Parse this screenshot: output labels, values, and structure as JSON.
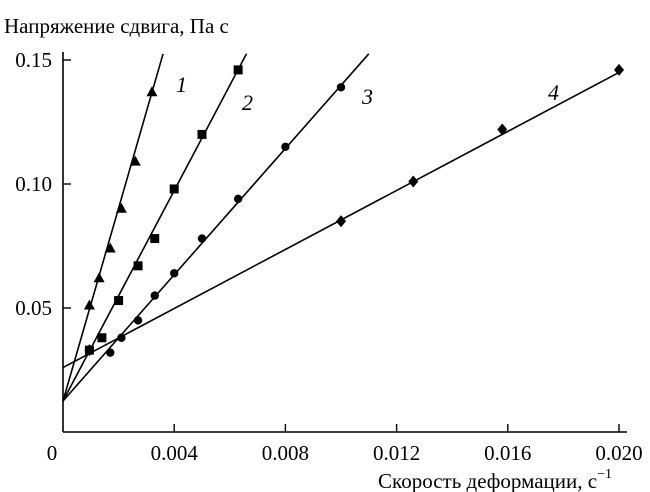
{
  "chart_data": {
    "type": "scatter",
    "ylabel": "Напряжение сдвига, Па с",
    "xlabel": "Скорость деформации, с",
    "xlabel_sup": "−1",
    "xlim": [
      0,
      0.02
    ],
    "ylim": [
      0,
      0.15
    ],
    "grid": false,
    "x_ticks": [
      {
        "v": 0,
        "label": "0"
      },
      {
        "v": 0.004,
        "label": "0.004"
      },
      {
        "v": 0.008,
        "label": "0.008"
      },
      {
        "v": 0.012,
        "label": "0.012"
      },
      {
        "v": 0.016,
        "label": "0.016"
      },
      {
        "v": 0.02,
        "label": "0.020"
      }
    ],
    "y_ticks": [
      {
        "v": 0.05,
        "label": "0.05"
      },
      {
        "v": 0.1,
        "label": "0.10"
      },
      {
        "v": 0.15,
        "label": "0.15"
      }
    ],
    "series": [
      {
        "label": "1",
        "marker": "triangle",
        "x": [
          0.00095,
          0.0013,
          0.0017,
          0.0021,
          0.0026,
          0.0032
        ],
        "y": [
          0.051,
          0.062,
          0.074,
          0.09,
          0.109,
          0.137
        ],
        "fit_line": {
          "x": [
            0,
            0.0036
          ],
          "y": [
            0.0125,
            0.1525
          ]
        }
      },
      {
        "label": "2",
        "marker": "square",
        "x": [
          0.00095,
          0.0014,
          0.002,
          0.0027,
          0.0033,
          0.004,
          0.005,
          0.0063
        ],
        "y": [
          0.033,
          0.038,
          0.053,
          0.067,
          0.078,
          0.098,
          0.12,
          0.146
        ],
        "fit_line": {
          "x": [
            0,
            0.0066
          ],
          "y": [
            0.0125,
            0.1525
          ]
        }
      },
      {
        "label": "3",
        "marker": "circle",
        "x": [
          0.0017,
          0.0021,
          0.0027,
          0.0033,
          0.004,
          0.005,
          0.0063,
          0.008,
          0.01
        ],
        "y": [
          0.032,
          0.038,
          0.045,
          0.055,
          0.064,
          0.078,
          0.094,
          0.115,
          0.139
        ],
        "fit_line": {
          "x": [
            0,
            0.011
          ],
          "y": [
            0.0125,
            0.1525
          ]
        }
      },
      {
        "label": "4",
        "marker": "diamond",
        "x": [
          0.00095,
          0.01,
          0.0126,
          0.0158,
          0.02
        ],
        "y": [
          0.033,
          0.085,
          0.101,
          0.122,
          0.146
        ],
        "fit_line": {
          "x": [
            0,
            0.02
          ],
          "y": [
            0.026,
            0.145
          ]
        }
      }
    ]
  }
}
